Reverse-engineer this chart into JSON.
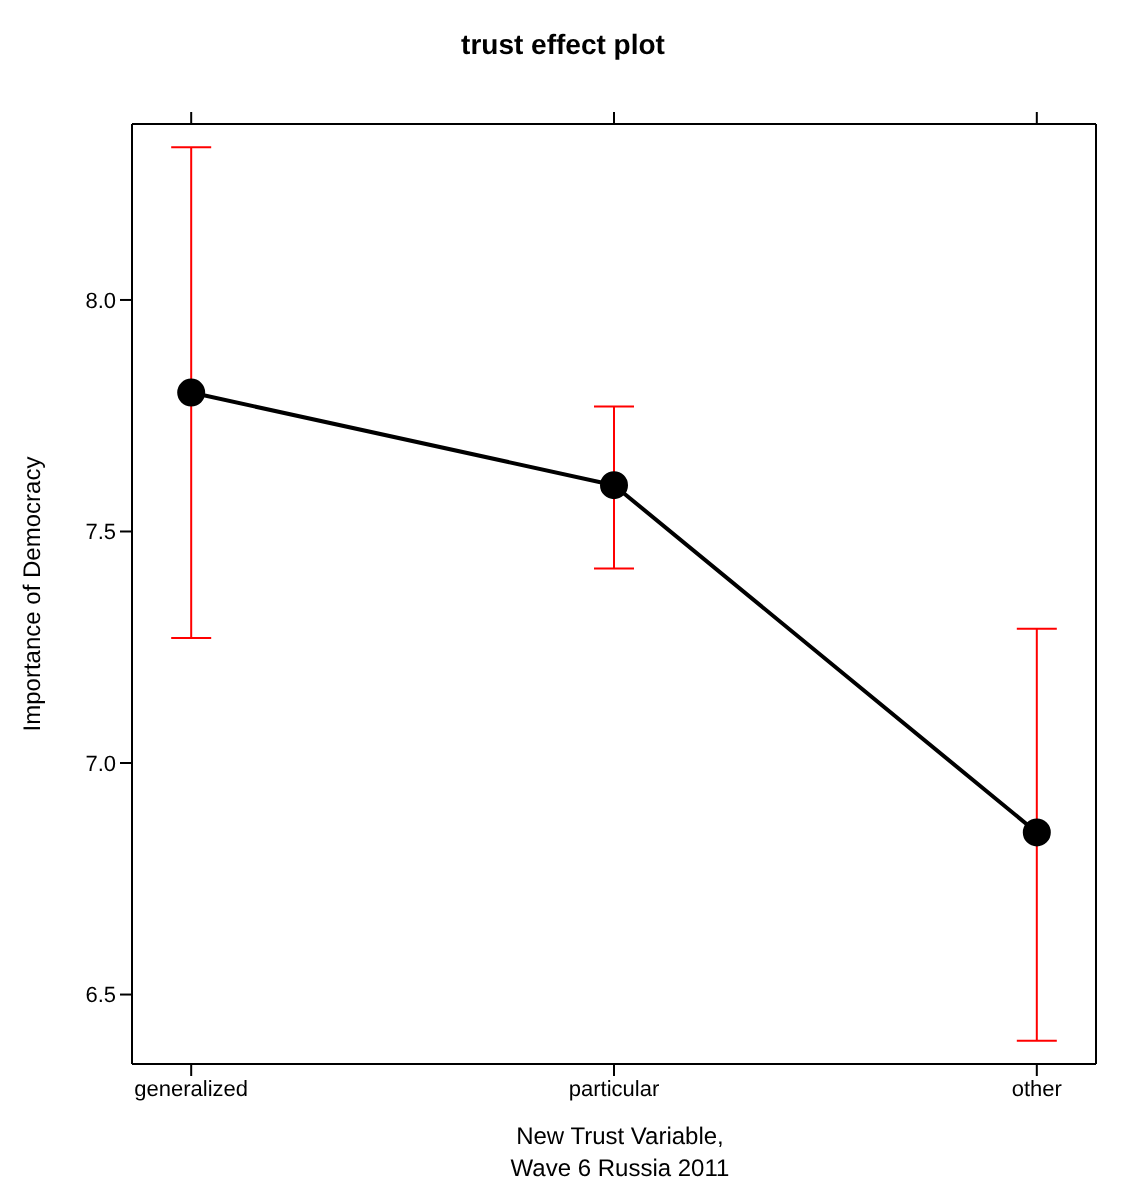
{
  "chart_data": {
    "type": "line",
    "title": "trust effect plot",
    "xlabel": "New Trust Variable,\nWave 6 Russia 2011",
    "ylabel": "Importance of Democracy",
    "categories": [
      "generalized",
      "particular",
      "other"
    ],
    "series": [
      {
        "color": "#000000",
        "values": [
          7.8,
          7.6,
          6.85
        ],
        "errors": [
          [
            7.27,
            8.33
          ],
          [
            7.42,
            7.77
          ],
          [
            6.4,
            7.29
          ]
        ]
      }
    ],
    "ylim": [
      6.35,
      8.38
    ],
    "yticks": [
      6.5,
      {
        "value": 7,
        "label": "7.0"
      },
      7.5,
      {
        "value": 8,
        "label": "8.0"
      }
    ],
    "grid": false,
    "marker": "circle",
    "line_style": "solid"
  }
}
